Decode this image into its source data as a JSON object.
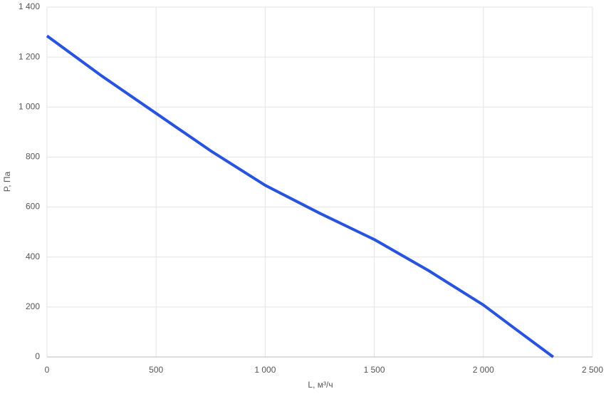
{
  "chart_data": {
    "type": "line",
    "x_label": "L, м³/ч",
    "y_label": "P, Па",
    "x": [
      0,
      250,
      500,
      750,
      1000,
      1250,
      1500,
      1750,
      2000,
      2150,
      2320
    ],
    "series": [
      {
        "name": "P",
        "color": "#2753e3",
        "values": [
          1285,
          1125,
          975,
          825,
          687,
          575,
          470,
          345,
          208,
          110,
          0
        ]
      }
    ],
    "xlim": [
      0,
      2500
    ],
    "xticks": [
      0,
      500,
      {
        "value": 1000,
        "label": "1 000"
      },
      {
        "value": 1500,
        "label": "1 500"
      },
      {
        "value": 2000,
        "label": "2 000"
      },
      {
        "value": 2500,
        "label": "2 500"
      }
    ],
    "ylim": [
      0,
      1400
    ],
    "yticks": [
      0,
      200,
      400,
      600,
      800,
      {
        "value": 1000,
        "label": "1 000"
      },
      {
        "value": 1200,
        "label": "1 200"
      },
      {
        "value": 1400,
        "label": "1 400"
      }
    ],
    "grid": true
  }
}
